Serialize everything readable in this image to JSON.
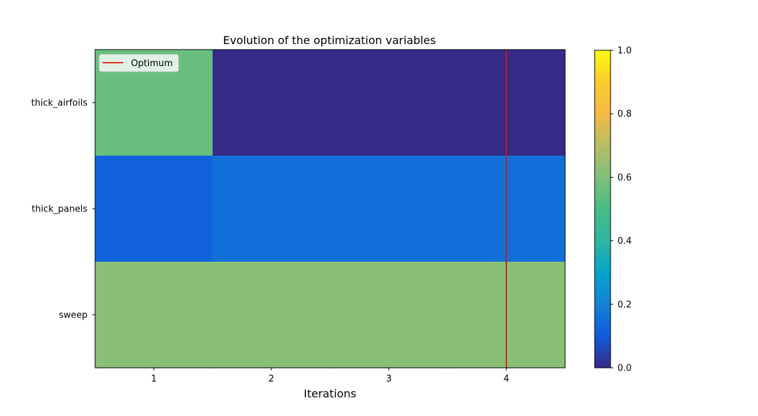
{
  "chart_data": {
    "type": "heatmap",
    "title": "Evolution of the optimization variables",
    "xlabel": "Iterations",
    "ylabel": "",
    "x": [
      1,
      2,
      3,
      4
    ],
    "xlim": [
      0.5,
      4.5
    ],
    "y_categories": [
      "thick_airfoils",
      "thick_panels",
      "sweep"
    ],
    "values": [
      [
        0.56,
        0.0,
        0.0,
        0.0
      ],
      [
        0.12,
        0.15,
        0.15,
        0.15
      ],
      [
        0.62,
        0.62,
        0.62,
        0.62
      ]
    ],
    "colorbar": {
      "range": [
        0,
        1
      ],
      "ticks": [
        "0.0",
        "0.2",
        "0.4",
        "0.6",
        "0.8",
        "1.0"
      ],
      "colormap": "parula"
    },
    "optimum_line": {
      "x": 4,
      "color": "#dd1111"
    },
    "legend": {
      "position": "upper-left",
      "entries": [
        {
          "label": "Optimum",
          "color": "#dd1111"
        }
      ]
    },
    "grid": false
  }
}
